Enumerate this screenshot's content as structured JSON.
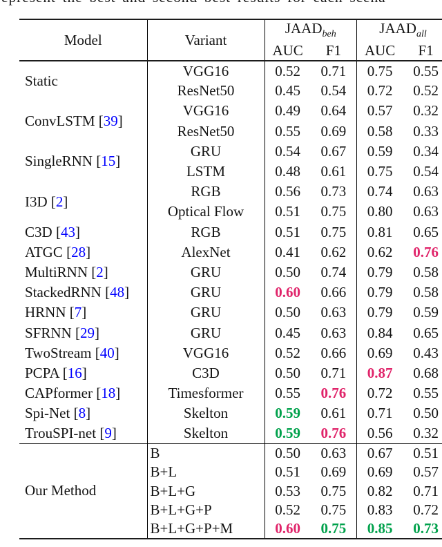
{
  "caption": {
    "fragment": "represent the best and second best results for each scena"
  },
  "colors": {
    "best_highlight": "#e0246a",
    "second_best_highlight": "#00a14b",
    "citation_link": "#0000ff"
  },
  "header": {
    "model": "Model",
    "variant": "Variant",
    "group_beh": {
      "name": "JAAD",
      "sub": "beh"
    },
    "group_all": {
      "name": "JAAD",
      "sub": "all"
    },
    "metrics": [
      "AUC",
      "F1",
      "AUC",
      "F1"
    ]
  },
  "groups": [
    {
      "model": "Static",
      "cite": "",
      "align": "center",
      "rows": [
        {
          "variant": "VGG16",
          "values": [
            "0.52",
            "0.71",
            "0.75",
            "0.55"
          ],
          "hl": [
            "",
            "",
            "",
            ""
          ]
        },
        {
          "variant": "ResNet50",
          "values": [
            "0.45",
            "0.54",
            "0.72",
            "0.52"
          ],
          "hl": [
            "",
            "",
            "",
            ""
          ]
        }
      ]
    },
    {
      "model": "ConvLSTM",
      "cite": "39",
      "align": "center",
      "rows": [
        {
          "variant": "VGG16",
          "values": [
            "0.49",
            "0.64",
            "0.57",
            "0.32"
          ],
          "hl": [
            "",
            "",
            "",
            ""
          ]
        },
        {
          "variant": "ResNet50",
          "values": [
            "0.55",
            "0.69",
            "0.58",
            "0.33"
          ],
          "hl": [
            "",
            "",
            "",
            ""
          ]
        }
      ]
    },
    {
      "model": "SingleRNN",
      "cite": "15",
      "align": "center",
      "rows": [
        {
          "variant": "GRU",
          "values": [
            "0.54",
            "0.67",
            "0.59",
            "0.34"
          ],
          "hl": [
            "",
            "",
            "",
            ""
          ]
        },
        {
          "variant": "LSTM",
          "values": [
            "0.48",
            "0.61",
            "0.75",
            "0.54"
          ],
          "hl": [
            "",
            "",
            "",
            ""
          ]
        }
      ]
    },
    {
      "model": "I3D",
      "cite": "2",
      "align": "center",
      "rows": [
        {
          "variant": "RGB",
          "values": [
            "0.56",
            "0.73",
            "0.74",
            "0.63"
          ],
          "hl": [
            "",
            "",
            "",
            ""
          ]
        },
        {
          "variant": "Optical Flow",
          "values": [
            "0.51",
            "0.75",
            "0.80",
            "0.63"
          ],
          "hl": [
            "",
            "",
            "",
            ""
          ]
        }
      ]
    },
    {
      "model": "C3D",
      "cite": "43",
      "align": "center",
      "rows": [
        {
          "variant": "RGB",
          "values": [
            "0.51",
            "0.75",
            "0.81",
            "0.65"
          ],
          "hl": [
            "",
            "",
            "",
            ""
          ]
        }
      ]
    },
    {
      "model": "ATGC",
      "cite": "28",
      "align": "center",
      "rows": [
        {
          "variant": "AlexNet",
          "values": [
            "0.41",
            "0.62",
            "0.62",
            "0.76"
          ],
          "hl": [
            "",
            "",
            "",
            "best"
          ]
        }
      ]
    },
    {
      "model": "MultiRNN",
      "cite": "2",
      "align": "center",
      "rows": [
        {
          "variant": "GRU",
          "values": [
            "0.50",
            "0.74",
            "0.79",
            "0.58"
          ],
          "hl": [
            "",
            "",
            "",
            ""
          ]
        }
      ]
    },
    {
      "model": "StackedRNN",
      "cite": "48",
      "align": "center",
      "rows": [
        {
          "variant": "GRU",
          "values": [
            "0.60",
            "0.66",
            "0.79",
            "0.58"
          ],
          "hl": [
            "best",
            "",
            "",
            ""
          ]
        }
      ]
    },
    {
      "model": "HRNN",
      "cite": "7",
      "align": "center",
      "rows": [
        {
          "variant": "GRU",
          "values": [
            "0.50",
            "0.63",
            "0.79",
            "0.59"
          ],
          "hl": [
            "",
            "",
            "",
            ""
          ]
        }
      ]
    },
    {
      "model": "SFRNN",
      "cite": "29",
      "align": "center",
      "rows": [
        {
          "variant": "GRU",
          "values": [
            "0.45",
            "0.63",
            "0.84",
            "0.65"
          ],
          "hl": [
            "",
            "",
            "",
            ""
          ]
        }
      ]
    },
    {
      "model": "TwoStream",
      "cite": "40",
      "align": "center",
      "rows": [
        {
          "variant": "VGG16",
          "values": [
            "0.52",
            "0.66",
            "0.69",
            "0.43"
          ],
          "hl": [
            "",
            "",
            "",
            ""
          ]
        }
      ]
    },
    {
      "model": "PCPA",
      "cite": "16",
      "align": "center",
      "rows": [
        {
          "variant": "C3D",
          "values": [
            "0.50",
            "0.71",
            "0.87",
            "0.68"
          ],
          "hl": [
            "",
            "",
            "best",
            ""
          ]
        }
      ]
    },
    {
      "model": "CAPformer",
      "cite": "18",
      "align": "center",
      "rows": [
        {
          "variant": "Timesformer",
          "values": [
            "0.55",
            "0.76",
            "0.72",
            "0.55"
          ],
          "hl": [
            "",
            "best",
            "",
            ""
          ]
        }
      ]
    },
    {
      "model": "Spi-Net",
      "cite": "8",
      "align": "center",
      "rows": [
        {
          "variant": "Skelton",
          "values": [
            "0.59",
            "0.61",
            "0.71",
            "0.50"
          ],
          "hl": [
            "second",
            "",
            "",
            ""
          ]
        }
      ]
    },
    {
      "model": "TrouSPI-net",
      "cite": "9",
      "align": "center",
      "rows": [
        {
          "variant": "Skelton",
          "values": [
            "0.59",
            "0.76",
            "0.56",
            "0.32"
          ],
          "hl": [
            "second",
            "best",
            "",
            ""
          ]
        }
      ]
    },
    {
      "model": "Our Method",
      "cite": "",
      "align": "left",
      "section_start": true,
      "rows": [
        {
          "variant": "B",
          "values": [
            "0.50",
            "0.63",
            "0.67",
            "0.51"
          ],
          "hl": [
            "",
            "",
            "",
            ""
          ]
        },
        {
          "variant": "B+L",
          "values": [
            "0.51",
            "0.69",
            "0.69",
            "0.57"
          ],
          "hl": [
            "",
            "",
            "",
            ""
          ]
        },
        {
          "variant": "B+L+G",
          "values": [
            "0.53",
            "0.75",
            "0.82",
            "0.71"
          ],
          "hl": [
            "",
            "",
            "",
            ""
          ]
        },
        {
          "variant": "B+L+G+P",
          "values": [
            "0.52",
            "0.75",
            "0.83",
            "0.72"
          ],
          "hl": [
            "",
            "",
            "",
            ""
          ]
        },
        {
          "variant": "B+L+G+P+M",
          "values": [
            "0.60",
            "0.75",
            "0.85",
            "0.73"
          ],
          "hl": [
            "best",
            "second",
            "second",
            "second"
          ]
        }
      ]
    }
  ]
}
